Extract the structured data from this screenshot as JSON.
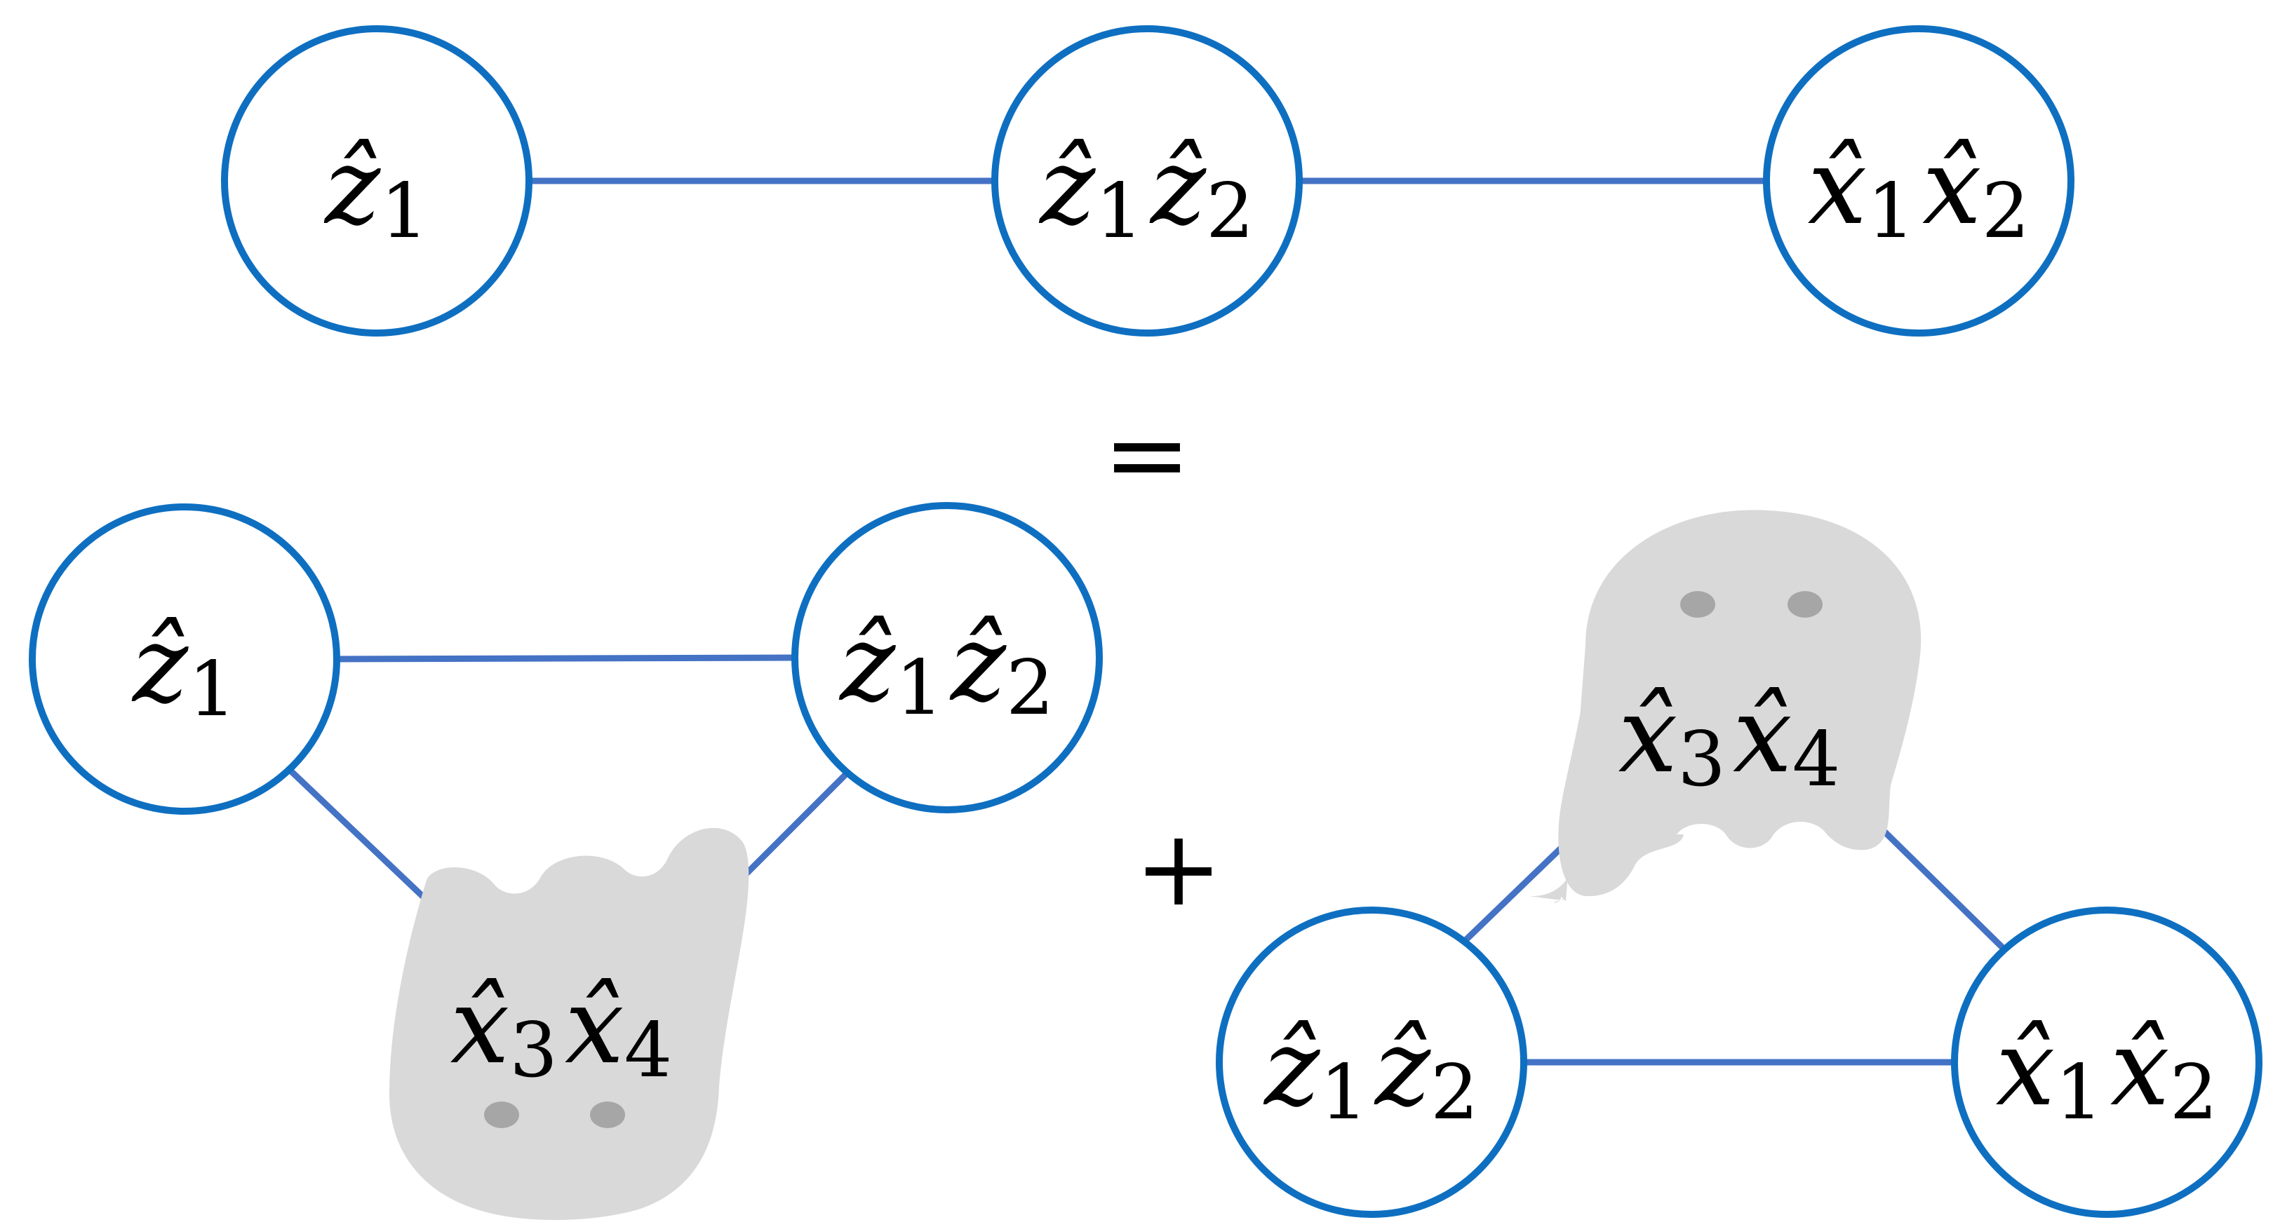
{
  "top_row": {
    "nodes": [
      {
        "var": "ẑ",
        "sub": "1"
      },
      {
        "var1": "ẑ",
        "sub1": "1",
        "var2": "ẑ",
        "sub2": "2"
      },
      {
        "var1": "x̂",
        "sub1": "1",
        "var2": "x̂",
        "sub2": "2"
      }
    ]
  },
  "equals_sign": "=",
  "plus_sign": "+",
  "left_term": {
    "nodes": [
      {
        "var": "ẑ",
        "sub": "1"
      },
      {
        "var1": "ẑ",
        "sub1": "1",
        "var2": "ẑ",
        "sub2": "2"
      }
    ],
    "ghost": {
      "var1": "x̂",
      "sub1": "3",
      "var2": "x̂",
      "sub2": "4"
    }
  },
  "right_term": {
    "nodes": [
      {
        "var1": "ẑ",
        "sub1": "1",
        "var2": "ẑ",
        "sub2": "2"
      },
      {
        "var1": "x̂",
        "sub1": "1",
        "var2": "x̂",
        "sub2": "2"
      }
    ],
    "ghost": {
      "var1": "x̂",
      "sub1": "3",
      "var2": "x̂",
      "sub2": "4"
    }
  },
  "colors": {
    "edge": "#4472c4",
    "node_stroke": "#0e6fc1",
    "ghost_fill": "#d9d9d9",
    "ghost_eyes": "#a6a6a6"
  }
}
